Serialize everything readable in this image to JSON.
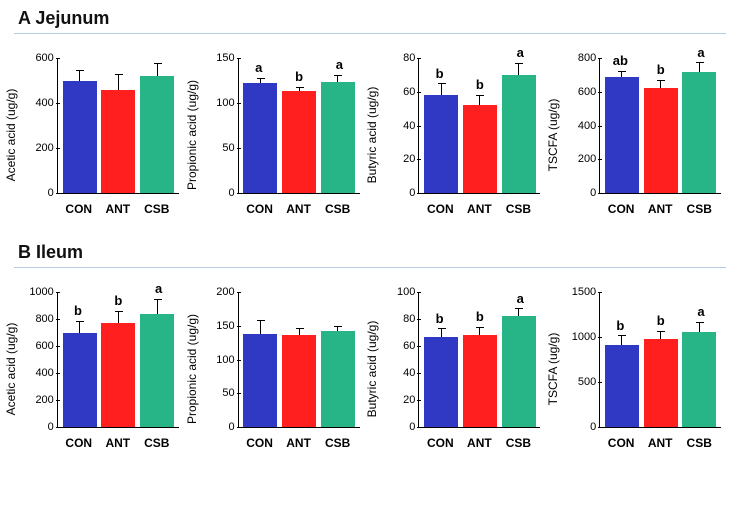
{
  "colors": {
    "CON": "#2f39c4",
    "ANT": "#ff1f1f",
    "CSB": "#27b487",
    "rule": "#b8cce4",
    "axis": "#000000",
    "bg": "#ffffff"
  },
  "categories": [
    "CON",
    "ANT",
    "CSB"
  ],
  "panels": [
    {
      "title": "A  Jejunum",
      "charts": [
        {
          "ylabel": "Acetic acid (ug/g)",
          "ylim": [
            0,
            600
          ],
          "ystep": 200,
          "values": [
            500,
            460,
            520
          ],
          "err": [
            45,
            70,
            60
          ],
          "sig": [
            "",
            "",
            ""
          ]
        },
        {
          "ylabel": "Propionic acid (ug/g)",
          "ylim": [
            0,
            150
          ],
          "ystep": 50,
          "values": [
            122,
            113,
            123
          ],
          "err": [
            6,
            5,
            8
          ],
          "sig": [
            "a",
            "b",
            "a"
          ]
        },
        {
          "ylabel": "Butyric acid (ug/g)",
          "ylim": [
            0,
            80
          ],
          "ystep": 20,
          "values": [
            58,
            52,
            70
          ],
          "err": [
            7,
            6,
            7
          ],
          "sig": [
            "b",
            "b",
            "a"
          ]
        },
        {
          "ylabel": "TSCFA (ug/g)",
          "ylim": [
            0,
            800
          ],
          "ystep": 200,
          "values": [
            685,
            625,
            715
          ],
          "err": [
            40,
            45,
            60
          ],
          "sig": [
            "ab",
            "b",
            "a"
          ]
        }
      ]
    },
    {
      "title": "B  Ileum",
      "charts": [
        {
          "ylabel": "Acetic acid (ug/g)",
          "ylim": [
            0,
            1000
          ],
          "ystep": 200,
          "values": [
            700,
            770,
            840
          ],
          "err": [
            85,
            90,
            110
          ],
          "sig": [
            "b",
            "b",
            "a"
          ]
        },
        {
          "ylabel": "Propionic acid (ug/g)",
          "ylim": [
            0,
            200
          ],
          "ystep": 50,
          "values": [
            138,
            137,
            142
          ],
          "err": [
            20,
            10,
            8
          ],
          "sig": [
            "",
            "",
            ""
          ]
        },
        {
          "ylabel": "Butyric acid (ug/g)",
          "ylim": [
            0,
            100
          ],
          "ystep": 20,
          "values": [
            67,
            68,
            82
          ],
          "err": [
            6,
            6,
            6
          ],
          "sig": [
            "b",
            "b",
            "a"
          ]
        },
        {
          "ylabel": "TSCFA (ug/g)",
          "ylim": [
            0,
            1500
          ],
          "ystep": 500,
          "values": [
            910,
            975,
            1060
          ],
          "err": [
            110,
            90,
            110
          ],
          "sig": [
            "b",
            "b",
            "a"
          ]
        }
      ]
    }
  ],
  "style": {
    "bar_width_pct": 70,
    "title_fontsize": 18,
    "axis_fontsize": 12,
    "tick_fontsize": 11,
    "sig_fontsize": 13
  }
}
